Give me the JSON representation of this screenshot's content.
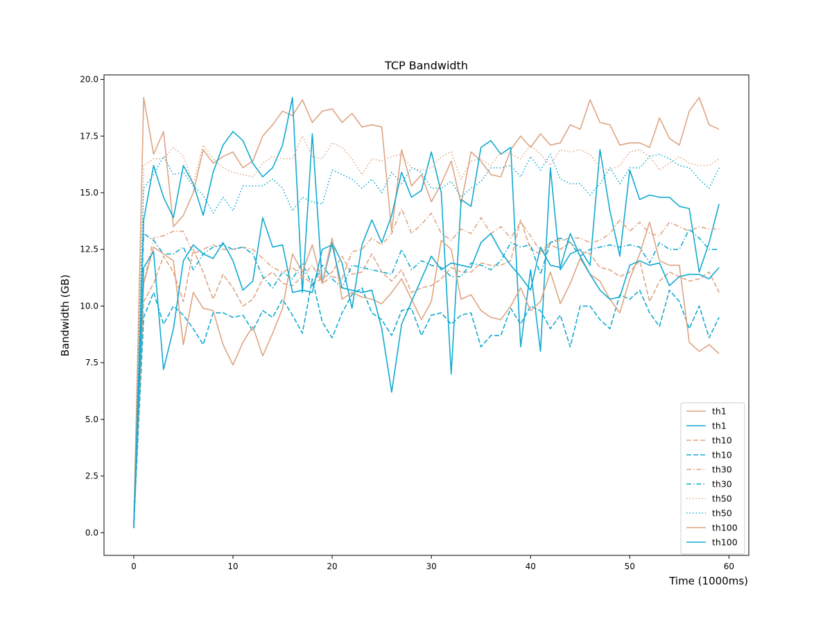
{
  "chart_data": {
    "type": "line",
    "title": "TCP Bandwidth",
    "xlabel": "Time (1000ms)",
    "ylabel": "Bandwidth (GB)",
    "xlim": [
      -3,
      62
    ],
    "ylim": [
      -1,
      20.2
    ],
    "xticks": [
      0,
      10,
      20,
      30,
      40,
      50,
      60
    ],
    "yticks": [
      0.0,
      2.5,
      5.0,
      7.5,
      10.0,
      12.5,
      15.0,
      17.5,
      20.0
    ],
    "ytick_labels": [
      "0.0",
      "2.5",
      "5.0",
      "7.5",
      "10.0",
      "12.5",
      "15.0",
      "17.5",
      "20.0"
    ],
    "legend": {
      "position": "lower-right"
    },
    "colors": {
      "orange": "#dda482",
      "cyan": "#10a9d0"
    },
    "x": [
      0,
      1,
      2,
      3,
      4,
      5,
      6,
      7,
      8,
      9,
      10,
      11,
      12,
      13,
      14,
      15,
      16,
      17,
      18,
      19,
      20,
      21,
      22,
      23,
      24,
      25,
      26,
      27,
      28,
      29,
      30,
      31,
      32,
      33,
      34,
      35,
      36,
      37,
      38,
      39,
      40,
      41,
      42,
      43,
      44,
      45,
      46,
      47,
      48,
      49,
      50,
      51,
      52,
      53,
      54,
      55,
      56,
      57,
      58,
      59
    ],
    "series": [
      {
        "name": "th1",
        "color": "#dda482",
        "dash": "solid",
        "values": [
          0.3,
          19.2,
          16.7,
          17.7,
          13.5,
          14.0,
          15.0,
          16.9,
          16.3,
          16.6,
          16.8,
          16.1,
          16.4,
          17.5,
          18.0,
          18.6,
          18.4,
          19.1,
          18.1,
          18.6,
          18.7,
          18.1,
          18.5,
          17.9,
          18.0,
          17.9,
          13.3,
          16.9,
          15.3,
          15.8,
          14.6,
          15.4,
          16.4,
          14.5,
          16.8,
          16.4,
          15.8,
          15.7,
          16.9,
          17.5,
          17.0,
          17.6,
          17.1,
          17.2,
          18.0,
          17.8,
          19.1,
          18.1,
          18.0,
          17.1,
          17.2,
          17.2,
          17.0,
          18.3,
          17.4,
          17.1,
          18.6,
          19.2,
          18.0,
          17.8
        ]
      },
      {
        "name": "th1",
        "color": "#10a9d0",
        "dash": "solid",
        "values": [
          0.2,
          13.8,
          16.2,
          14.8,
          13.9,
          16.2,
          15.4,
          14.0,
          15.9,
          17.1,
          17.7,
          17.3,
          16.3,
          15.7,
          16.1,
          17.1,
          19.2,
          10.6,
          17.6,
          11.0,
          12.8,
          11.9,
          9.9,
          12.7,
          13.8,
          12.8,
          14.0,
          15.9,
          14.8,
          15.1,
          16.8,
          15.0,
          7.0,
          14.7,
          14.4,
          17.0,
          17.3,
          16.7,
          17.0,
          8.2,
          11.6,
          8.0,
          16.1,
          11.6,
          12.3,
          12.5,
          11.8,
          16.9,
          14.2,
          12.2,
          16.0,
          14.7,
          14.9,
          14.8,
          14.8,
          14.4,
          14.3,
          11.5,
          12.8,
          14.5
        ]
      },
      {
        "name": "th10",
        "color": "#dda482",
        "dash": "dashed",
        "values": [
          0.4,
          10.2,
          11.0,
          12.2,
          11.5,
          10.2,
          12.5,
          11.5,
          10.3,
          11.4,
          10.8,
          10.0,
          10.3,
          11.2,
          11.5,
          11.0,
          10.9,
          11.3,
          11.0,
          11.2,
          11.5,
          12.2,
          11.4,
          11.5,
          12.3,
          11.5,
          11.1,
          11.6,
          10.6,
          10.8,
          10.9,
          11.2,
          11.7,
          11.5,
          11.5,
          11.9,
          11.8,
          11.8,
          12.0,
          13.8,
          12.5,
          12.3,
          12.7,
          12.5,
          12.8,
          12.4,
          12.3,
          11.7,
          11.6,
          11.3,
          11.5,
          12.0,
          10.2,
          11.1,
          11.5,
          11.3,
          11.1,
          11.2,
          11.5,
          10.6
        ]
      },
      {
        "name": "th10",
        "color": "#10a9d0",
        "dash": "dashed",
        "values": [
          0.3,
          9.5,
          10.6,
          9.2,
          10.0,
          9.6,
          9.0,
          8.3,
          9.7,
          9.7,
          9.5,
          9.6,
          8.9,
          9.8,
          9.5,
          10.3,
          9.6,
          8.8,
          11.2,
          9.3,
          8.6,
          9.7,
          10.5,
          10.8,
          9.7,
          9.4,
          8.7,
          9.8,
          9.9,
          8.7,
          9.6,
          9.7,
          9.2,
          9.6,
          9.7,
          8.2,
          8.7,
          8.7,
          9.9,
          9.2,
          10.0,
          9.8,
          9.0,
          9.6,
          8.2,
          10.0,
          10.0,
          9.4,
          9.0,
          10.5,
          10.3,
          10.7,
          9.7,
          9.1,
          10.7,
          10.2,
          9.0,
          10.0,
          8.6,
          9.5
        ]
      },
      {
        "name": "th30",
        "color": "#dda482",
        "dash": "dashdot",
        "values": [
          0.5,
          11.0,
          13.0,
          13.1,
          13.3,
          13.3,
          12.3,
          12.5,
          12.7,
          12.5,
          12.5,
          12.6,
          12.5,
          12.1,
          11.7,
          11.5,
          11.7,
          11.3,
          11.8,
          11.0,
          11.3,
          11.2,
          12.4,
          12.5,
          13.0,
          12.7,
          13.2,
          14.3,
          13.2,
          13.6,
          14.1,
          13.2,
          12.9,
          13.4,
          13.2,
          13.9,
          13.2,
          13.5,
          13.0,
          13.7,
          13.1,
          12.4,
          12.8,
          12.9,
          13.0,
          13.0,
          12.8,
          12.9,
          13.2,
          13.8,
          13.3,
          13.7,
          13.2,
          13.1,
          13.7,
          13.5,
          13.3,
          13.5,
          13.4,
          13.4
        ]
      },
      {
        "name": "th30",
        "color": "#10a9d0",
        "dash": "dashdot",
        "values": [
          0.4,
          13.2,
          12.9,
          12.3,
          12.3,
          12.6,
          11.6,
          12.3,
          12.6,
          12.7,
          12.5,
          12.6,
          12.3,
          11.3,
          10.8,
          11.5,
          11.2,
          11.9,
          10.9,
          11.8,
          11.2,
          10.8,
          11.8,
          11.7,
          11.6,
          11.5,
          11.4,
          12.5,
          11.6,
          12.0,
          11.8,
          11.7,
          11.3,
          11.3,
          11.9,
          11.8,
          11.6,
          12.0,
          12.8,
          12.6,
          12.7,
          11.4,
          12.8,
          13.0,
          12.8,
          12.2,
          12.5,
          12.6,
          12.7,
          12.6,
          12.7,
          12.6,
          11.9,
          12.8,
          12.5,
          12.5,
          13.4,
          13.0,
          12.5,
          12.5
        ]
      },
      {
        "name": "th50",
        "color": "#dda482",
        "dash": "dotted",
        "values": [
          0.6,
          16.2,
          16.5,
          16.5,
          17.0,
          16.6,
          15.4,
          17.1,
          16.5,
          16.1,
          15.9,
          15.8,
          15.7,
          16.3,
          16.6,
          16.5,
          16.5,
          17.5,
          16.6,
          16.5,
          17.2,
          17.0,
          16.5,
          15.8,
          16.5,
          16.4,
          16.6,
          16.7,
          16.1,
          16.0,
          16.1,
          16.6,
          16.8,
          15.6,
          16.4,
          16.5,
          16.2,
          16.8,
          16.7,
          16.5,
          17.1,
          16.7,
          16.2,
          16.9,
          16.8,
          16.9,
          16.7,
          16.1,
          16.0,
          16.2,
          16.8,
          16.9,
          16.6,
          16.0,
          16.3,
          16.6,
          16.3,
          16.2,
          16.2,
          16.5
        ]
      },
      {
        "name": "th50",
        "color": "#10a9d0",
        "dash": "dotted",
        "values": [
          0.5,
          15.2,
          15.8,
          16.6,
          15.8,
          15.9,
          15.3,
          14.9,
          14.1,
          14.8,
          14.2,
          15.3,
          15.3,
          15.3,
          15.6,
          15.2,
          14.2,
          14.8,
          14.6,
          14.5,
          16.0,
          15.8,
          15.6,
          15.2,
          15.6,
          15.0,
          15.9,
          15.4,
          16.1,
          15.9,
          15.2,
          15.2,
          15.5,
          14.8,
          15.2,
          15.5,
          16.1,
          16.1,
          16.2,
          15.7,
          16.6,
          16.0,
          16.7,
          15.6,
          15.4,
          15.4,
          14.9,
          15.4,
          16.1,
          15.4,
          16.1,
          16.1,
          16.6,
          16.7,
          16.5,
          16.2,
          16.1,
          15.6,
          15.2,
          16.1
        ]
      },
      {
        "name": "th100",
        "color": "#dda482",
        "dash": "solid",
        "values": [
          0.3,
          11.0,
          12.6,
          12.3,
          12.0,
          8.3,
          10.6,
          9.9,
          9.8,
          8.3,
          7.4,
          8.4,
          9.1,
          7.8,
          8.8,
          9.9,
          12.3,
          11.5,
          12.7,
          11.0,
          13.0,
          10.3,
          10.6,
          10.4,
          10.3,
          10.1,
          10.6,
          11.2,
          10.3,
          9.4,
          10.2,
          12.9,
          12.5,
          10.3,
          10.5,
          9.8,
          9.5,
          9.4,
          10.0,
          10.8,
          9.8,
          10.2,
          11.5,
          10.1,
          11.0,
          12.1,
          11.4,
          11.1,
          10.3,
          9.7,
          11.2,
          12.3,
          13.7,
          12.0,
          11.8,
          11.8,
          8.4,
          8.0,
          8.3,
          7.9
        ]
      },
      {
        "name": "th100",
        "color": "#10a9d0",
        "dash": "solid",
        "values": [
          0.2,
          11.7,
          12.4,
          7.2,
          9.0,
          12.0,
          12.7,
          12.3,
          12.1,
          12.8,
          12.0,
          10.7,
          11.1,
          13.9,
          12.6,
          12.7,
          10.6,
          10.7,
          10.6,
          12.5,
          12.7,
          10.8,
          10.7,
          10.6,
          10.7,
          9.0,
          6.2,
          9.2,
          10.2,
          11.2,
          12.2,
          11.6,
          11.9,
          11.8,
          11.7,
          12.8,
          13.2,
          12.4,
          11.8,
          11.3,
          10.7,
          12.6,
          11.8,
          11.7,
          13.2,
          12.2,
          11.4,
          10.7,
          10.3,
          10.4,
          11.8,
          12.0,
          11.8,
          11.9,
          10.9,
          11.3,
          11.4,
          11.4,
          11.2,
          11.7
        ]
      }
    ]
  }
}
